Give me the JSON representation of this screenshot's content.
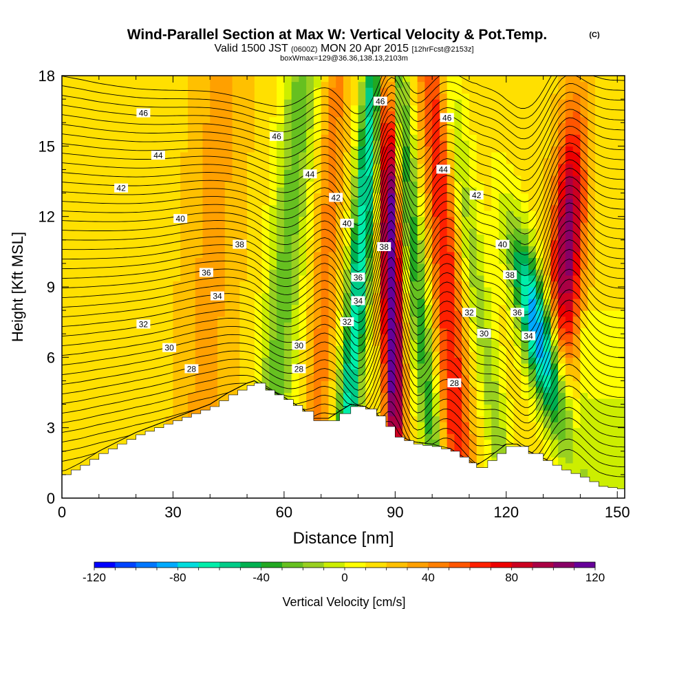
{
  "chart_data": {
    "type": "heatmap",
    "title": "Wind-Parallel Section at Max W: Vertical Velocity & Pot.Temp.",
    "title_mark": "(C)",
    "subtitle_parts": [
      "Valid 1500 JST",
      "(0600Z)",
      "MON 20 Apr 2015",
      "[12hrFcst@2153z]"
    ],
    "subtitle2": "boxWmax=129@36.36,138.13,2103m",
    "xlabel": "Distance [nm]",
    "ylabel": "Height [Kft MSL]",
    "xlim": [
      0,
      152
    ],
    "ylim": [
      0,
      18
    ],
    "xticks": [
      0,
      30,
      60,
      90,
      120,
      150
    ],
    "yticks": [
      0,
      3,
      6,
      9,
      12,
      15,
      18
    ],
    "colorbar": {
      "label": "Vertical Velocity [cm/s]",
      "ticks": [
        -120,
        -80,
        -40,
        0,
        40,
        80,
        120
      ],
      "range": [
        -120,
        120
      ],
      "colors": [
        "#0000ff",
        "#0044ff",
        "#0077ff",
        "#00aaff",
        "#00dddd",
        "#00eeaa",
        "#00cc88",
        "#00b050",
        "#22a822",
        "#66c020",
        "#99d020",
        "#ccee00",
        "#ffff00",
        "#ffe000",
        "#ffc000",
        "#ffa000",
        "#ff7f00",
        "#ff5500",
        "#ff2000",
        "#ee0000",
        "#cc0020",
        "#aa0044",
        "#880066",
        "#660099"
      ]
    },
    "updrafts_cm_s": [
      {
        "x": 88,
        "y": 9,
        "w": 120
      },
      {
        "x": 136,
        "y": 11,
        "w": 100
      },
      {
        "x": 106,
        "y": 5,
        "w": 60
      },
      {
        "x": 38,
        "y": 10,
        "w": 30
      }
    ],
    "downdrafts_cm_s": [
      {
        "x": 125,
        "y": 6.5,
        "w": -110
      },
      {
        "x": 80,
        "y": 5.5,
        "w": -80
      },
      {
        "x": 66,
        "y": 9,
        "w": -40
      },
      {
        "x": 100,
        "y": 3,
        "w": -50
      }
    ],
    "terrain_kft": {
      "x": [
        0,
        5,
        10,
        15,
        20,
        25,
        30,
        35,
        40,
        45,
        50,
        52,
        55,
        60,
        65,
        68,
        72,
        78,
        82,
        85,
        90,
        95,
        100,
        105,
        110,
        112,
        115,
        120,
        123,
        126,
        130,
        135,
        140,
        145,
        150,
        152
      ],
      "h": [
        1.0,
        1.4,
        1.9,
        2.3,
        2.7,
        3.0,
        3.3,
        3.6,
        3.9,
        4.4,
        4.8,
        4.9,
        4.6,
        4.2,
        3.7,
        3.3,
        3.3,
        3.9,
        3.8,
        3.5,
        2.6,
        2.3,
        2.2,
        2.0,
        1.5,
        1.3,
        1.6,
        2.2,
        2.2,
        1.9,
        1.6,
        1.2,
        0.9,
        0.5,
        0.4,
        0.4
      ]
    },
    "contour_label_values": [
      46,
      44,
      42,
      40,
      38,
      36,
      34,
      32,
      30,
      28
    ],
    "theta_contours_celsius": [
      {
        "value": 28,
        "labels": [
          [
            35,
            5.5
          ],
          [
            64,
            5.5
          ],
          [
            106,
            4.9
          ]
        ]
      },
      {
        "value": 30,
        "labels": [
          [
            29,
            6.4
          ],
          [
            64,
            6.5
          ],
          [
            114,
            7.0
          ]
        ]
      },
      {
        "value": 32,
        "labels": [
          [
            22,
            7.4
          ],
          [
            77,
            7.5
          ],
          [
            110,
            7.9
          ]
        ]
      },
      {
        "value": 34,
        "labels": [
          [
            42,
            8.6
          ],
          [
            80,
            8.4
          ],
          [
            126,
            6.9
          ]
        ]
      },
      {
        "value": 36,
        "labels": [
          [
            39,
            9.6
          ],
          [
            80,
            9.4
          ],
          [
            123,
            7.9
          ]
        ]
      },
      {
        "value": 38,
        "labels": [
          [
            48,
            10.8
          ],
          [
            87,
            10.7
          ],
          [
            121,
            9.5
          ]
        ]
      },
      {
        "value": 40,
        "labels": [
          [
            32,
            11.9
          ],
          [
            77,
            11.7
          ],
          [
            119,
            10.8
          ]
        ]
      },
      {
        "value": 42,
        "labels": [
          [
            16,
            13.2
          ],
          [
            74,
            12.8
          ],
          [
            112,
            12.9
          ]
        ]
      },
      {
        "value": 44,
        "labels": [
          [
            26,
            14.6
          ],
          [
            67,
            13.8
          ],
          [
            103,
            14.0
          ]
        ]
      },
      {
        "value": 46,
        "labels": [
          [
            22,
            16.4
          ],
          [
            58,
            15.4
          ],
          [
            86,
            16.9
          ],
          [
            104,
            16.2
          ]
        ]
      }
    ]
  }
}
